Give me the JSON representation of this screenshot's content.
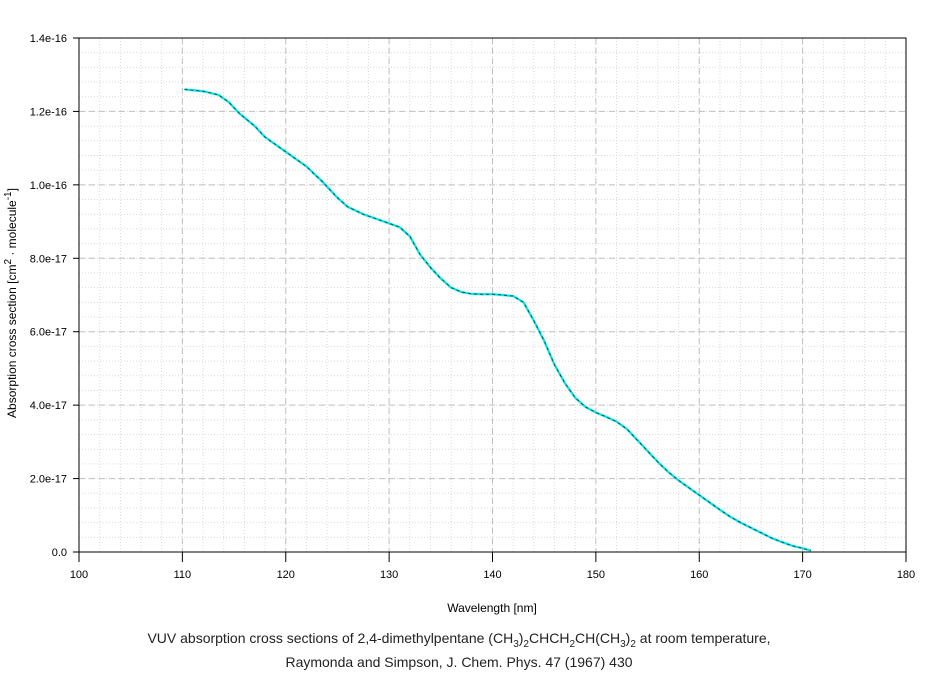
{
  "chart_data": {
    "type": "line",
    "title": "",
    "xlabel": "Wavelength [nm]",
    "ylabel_parts": {
      "prefix": "Absorption cross section [cm",
      "sup1": "2",
      "middle": " · molecule",
      "sup2": "-1",
      "suffix": "]"
    },
    "xlim": [
      100,
      180
    ],
    "ylim": [
      0,
      1.4e-16
    ],
    "x_ticks": [
      100,
      110,
      120,
      130,
      140,
      150,
      160,
      170,
      180
    ],
    "x_tick_labels": [
      "100",
      "110",
      "120",
      "130",
      "140",
      "150",
      "160",
      "170",
      "180"
    ],
    "y_ticks": [
      0,
      2e-17,
      4e-17,
      6e-17,
      8e-17,
      1e-16,
      1.2e-16,
      1.4e-16
    ],
    "y_tick_labels": [
      "0.0",
      "2.0e-17",
      "4.0e-17",
      "6.0e-17",
      "8.0e-17",
      "1.0e-16",
      "1.2e-16",
      "1.4e-16"
    ],
    "grid": true,
    "legend": "none",
    "series": [
      {
        "color": "#00e5e5",
        "x": [
          110.2,
          112,
          113.5,
          114.5,
          115.5,
          117,
          118,
          120,
          122,
          123.5,
          125,
          126,
          127.5,
          129,
          131,
          132,
          133,
          134,
          135,
          136,
          137,
          138,
          139,
          140,
          141,
          142,
          143,
          144,
          145,
          146,
          147,
          148,
          149,
          150,
          151,
          152,
          153,
          154,
          155,
          156,
          157,
          158,
          159,
          160,
          161,
          162,
          163,
          164,
          165,
          166,
          167,
          168,
          169,
          170,
          170.8
        ],
        "y": [
          1.26e-16,
          1.255e-16,
          1.245e-16,
          1.225e-16,
          1.195e-16,
          1.16e-16,
          1.13e-16,
          1.09e-16,
          1.05e-16,
          1.01e-16,
          9.65e-17,
          9.4e-17,
          9.2e-17,
          9.05e-17,
          8.85e-17,
          8.6e-17,
          8.1e-17,
          7.75e-17,
          7.45e-17,
          7.2e-17,
          7.08e-17,
          7.03e-17,
          7.02e-17,
          7.02e-17,
          7e-17,
          6.97e-17,
          6.8e-17,
          6.3e-17,
          5.75e-17,
          5.1e-17,
          4.6e-17,
          4.2e-17,
          3.95e-17,
          3.8e-17,
          3.68e-17,
          3.55e-17,
          3.35e-17,
          3.05e-17,
          2.75e-17,
          2.45e-17,
          2.18e-17,
          1.95e-17,
          1.75e-17,
          1.55e-17,
          1.35e-17,
          1.15e-17,
          9.6e-18,
          8e-18,
          6.6e-18,
          5.2e-18,
          3.8e-18,
          2.7e-18,
          1.7e-18,
          1e-18,
          4e-19
        ]
      }
    ]
  },
  "caption": {
    "line1_parts": [
      "VUV absorption cross sections of 2,4-dimethylpentane (CH",
      "3",
      ")",
      "2",
      "CHCH",
      "2",
      "CH(CH",
      "3",
      ")",
      "2",
      " at room temperature,"
    ],
    "line2": "Raymonda and Simpson, J. Chem. Phys. 47 (1967) 430"
  }
}
